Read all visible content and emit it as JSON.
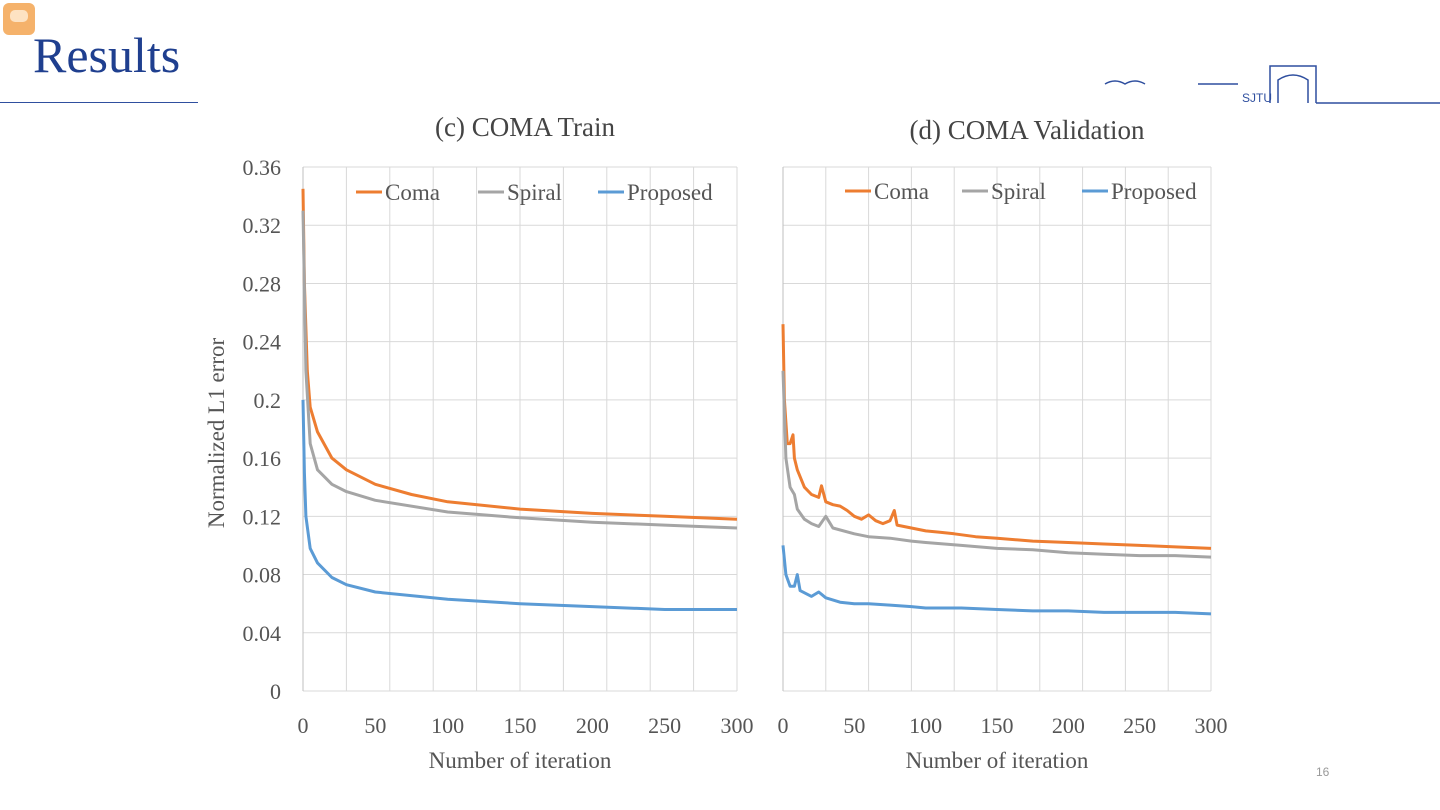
{
  "slide": {
    "title": "Results",
    "page_number": "16",
    "logo_text": "SJTU"
  },
  "chart_data": [
    {
      "type": "line",
      "title": "(c) COMA Train",
      "xlabel": "Number of iteration",
      "ylabel": "Normalized L1 error",
      "xlim": [
        0,
        300
      ],
      "ylim": [
        0,
        0.36
      ],
      "xticks": [
        "0",
        "50",
        "100",
        "150",
        "200",
        "250",
        "300"
      ],
      "yticks": [
        "0",
        "0.04",
        "0.08",
        "0.12",
        "0.16",
        "0.2",
        "0.24",
        "0.28",
        "0.32",
        "0.36"
      ],
      "grid": true,
      "legend": "top",
      "series": [
        {
          "name": "Coma",
          "color": "#ed7d31",
          "x": [
            0,
            1,
            3,
            5,
            10,
            20,
            30,
            50,
            75,
            100,
            150,
            200,
            250,
            300
          ],
          "y": [
            0.345,
            0.28,
            0.22,
            0.195,
            0.178,
            0.16,
            0.152,
            0.142,
            0.135,
            0.13,
            0.125,
            0.122,
            0.12,
            0.118
          ]
        },
        {
          "name": "Spiral",
          "color": "#a5a5a5",
          "x": [
            0,
            2,
            5,
            10,
            20,
            30,
            50,
            100,
            150,
            200,
            250,
            300
          ],
          "y": [
            0.33,
            0.22,
            0.17,
            0.152,
            0.142,
            0.137,
            0.131,
            0.123,
            0.119,
            0.116,
            0.114,
            0.112
          ]
        },
        {
          "name": "Proposed",
          "color": "#5b9bd5",
          "x": [
            0,
            1,
            2,
            5,
            10,
            20,
            30,
            50,
            100,
            150,
            200,
            250,
            300
          ],
          "y": [
            0.2,
            0.15,
            0.12,
            0.098,
            0.088,
            0.078,
            0.073,
            0.068,
            0.063,
            0.06,
            0.058,
            0.056,
            0.056
          ]
        }
      ]
    },
    {
      "type": "line",
      "title": "(d) COMA Validation",
      "xlabel": "Number of iteration",
      "ylabel": "",
      "xlim": [
        0,
        300
      ],
      "ylim": [
        0,
        0.36
      ],
      "xticks": [
        "0",
        "50",
        "100",
        "150",
        "200",
        "250",
        "300"
      ],
      "yticks": [],
      "grid": true,
      "legend": "top",
      "series": [
        {
          "name": "Coma",
          "color": "#ed7d31",
          "x": [
            0,
            1,
            3,
            5,
            7,
            8,
            10,
            15,
            20,
            25,
            27,
            30,
            35,
            40,
            45,
            50,
            55,
            60,
            65,
            70,
            75,
            78,
            80,
            90,
            100,
            110,
            120,
            135,
            150,
            175,
            200,
            225,
            250,
            275,
            300
          ],
          "y": [
            0.252,
            0.2,
            0.17,
            0.17,
            0.176,
            0.16,
            0.152,
            0.14,
            0.135,
            0.133,
            0.141,
            0.13,
            0.128,
            0.127,
            0.124,
            0.12,
            0.118,
            0.121,
            0.117,
            0.115,
            0.117,
            0.124,
            0.114,
            0.112,
            0.11,
            0.109,
            0.108,
            0.106,
            0.105,
            0.103,
            0.102,
            0.101,
            0.1,
            0.099,
            0.098
          ]
        },
        {
          "name": "Spiral",
          "color": "#a5a5a5",
          "x": [
            0,
            2,
            5,
            8,
            10,
            15,
            20,
            25,
            30,
            35,
            50,
            60,
            75,
            90,
            100,
            125,
            150,
            175,
            200,
            225,
            250,
            275,
            300
          ],
          "y": [
            0.22,
            0.16,
            0.14,
            0.135,
            0.125,
            0.118,
            0.115,
            0.113,
            0.12,
            0.112,
            0.108,
            0.106,
            0.105,
            0.103,
            0.102,
            0.1,
            0.098,
            0.097,
            0.095,
            0.094,
            0.093,
            0.093,
            0.092
          ]
        },
        {
          "name": "Proposed",
          "color": "#5b9bd5",
          "x": [
            0,
            2,
            5,
            8,
            10,
            12,
            20,
            25,
            30,
            40,
            50,
            60,
            75,
            90,
            100,
            125,
            150,
            175,
            200,
            225,
            250,
            275,
            300
          ],
          "y": [
            0.1,
            0.08,
            0.072,
            0.072,
            0.08,
            0.069,
            0.065,
            0.068,
            0.064,
            0.061,
            0.06,
            0.06,
            0.059,
            0.058,
            0.057,
            0.057,
            0.056,
            0.055,
            0.055,
            0.054,
            0.054,
            0.054,
            0.053
          ]
        }
      ]
    }
  ]
}
